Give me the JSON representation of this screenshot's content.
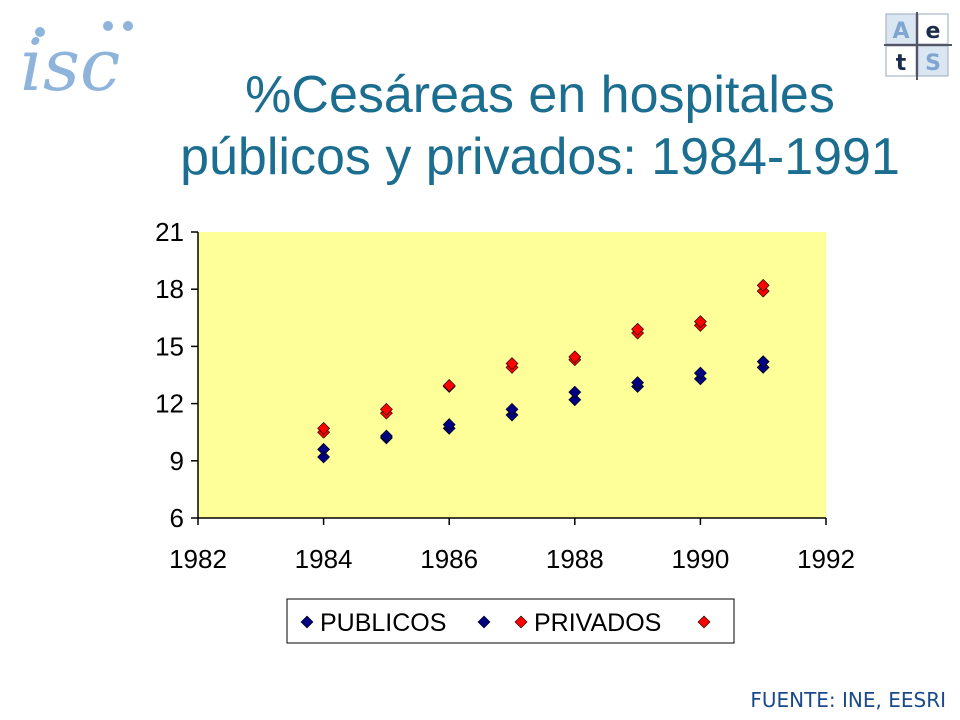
{
  "slide": {
    "title_line1": "%Cesáreas en hospitales",
    "title_line2": "públicos y privados: 1984-1991",
    "source": "FUENTE: INE, EESRI",
    "logo_left_text": "isc",
    "logo_right_letters": [
      "A",
      "e",
      "t",
      "S"
    ]
  },
  "colors": {
    "title": "#1b6e8f",
    "plot_bg": "#ffff99",
    "publicos": "#000080",
    "privados": "#ff0000"
  },
  "chart_data": {
    "type": "scatter",
    "title": "",
    "xlabel": "",
    "ylabel": "",
    "xlim": [
      1982,
      1992
    ],
    "ylim": [
      6,
      21
    ],
    "xticks": [
      1982,
      1984,
      1986,
      1988,
      1990,
      1992
    ],
    "yticks": [
      6,
      9,
      12,
      15,
      18,
      21
    ],
    "grid": false,
    "legend_placement": "bottom",
    "series": [
      {
        "name": "PUBLICOS",
        "marker": "diamond",
        "points": [
          [
            1984,
            9.2
          ],
          [
            1984,
            9.6
          ],
          [
            1985,
            10.2
          ],
          [
            1985,
            10.3
          ],
          [
            1986,
            10.7
          ],
          [
            1986,
            10.9
          ],
          [
            1987,
            11.4
          ],
          [
            1987,
            11.7
          ],
          [
            1988,
            12.2
          ],
          [
            1988,
            12.6
          ],
          [
            1989,
            12.9
          ],
          [
            1989,
            13.1
          ],
          [
            1990,
            13.3
          ],
          [
            1990,
            13.6
          ],
          [
            1991,
            13.9
          ],
          [
            1991,
            14.2
          ]
        ]
      },
      {
        "name": "PRIVADOS",
        "marker": "diamond",
        "points": [
          [
            1984,
            10.5
          ],
          [
            1984,
            10.7
          ],
          [
            1985,
            11.5
          ],
          [
            1985,
            11.7
          ],
          [
            1986,
            12.9
          ],
          [
            1986,
            12.95
          ],
          [
            1987,
            13.9
          ],
          [
            1987,
            14.1
          ],
          [
            1988,
            14.3
          ],
          [
            1988,
            14.45
          ],
          [
            1989,
            15.7
          ],
          [
            1989,
            15.9
          ],
          [
            1990,
            16.1
          ],
          [
            1990,
            16.3
          ],
          [
            1991,
            17.9
          ],
          [
            1991,
            18.2
          ]
        ]
      }
    ]
  }
}
